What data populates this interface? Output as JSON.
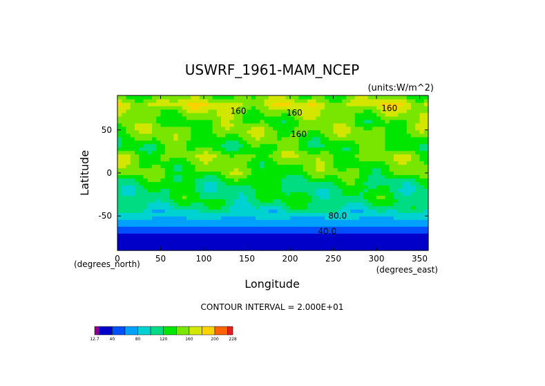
{
  "chart_data": {
    "type": "heatmap",
    "title": "USWRF_1961-MAM_NCEP",
    "units": "(units:W/m^2)",
    "xlabel": "Longitude",
    "ylabel": "Latitude",
    "x_unit_label": "(degrees_east)",
    "y_unit_label": "(degrees_north)",
    "xlim": [
      0,
      360
    ],
    "ylim": [
      -90,
      90
    ],
    "xticks": [
      0,
      50,
      100,
      150,
      200,
      250,
      300,
      350
    ],
    "yticks": [
      -50,
      0,
      50
    ],
    "contour_interval": "CONTOUR INTERVAL = 2.000E+01",
    "contour_labels": [
      {
        "text": "160",
        "lon": 140,
        "lat": 72
      },
      {
        "text": "160",
        "lon": 205,
        "lat": 70
      },
      {
        "text": "160",
        "lon": 315,
        "lat": 75
      },
      {
        "text": "160",
        "lon": 210,
        "lat": 45
      },
      {
        "text": "80.0",
        "lon": 255,
        "lat": -50
      },
      {
        "text": "40.0",
        "lon": 243,
        "lat": -68
      }
    ],
    "latitude_profile": [
      {
        "lat": 90,
        "value": 140
      },
      {
        "lat": 80,
        "value": 170
      },
      {
        "lat": 70,
        "value": 150
      },
      {
        "lat": 60,
        "value": 140
      },
      {
        "lat": 50,
        "value": 150
      },
      {
        "lat": 40,
        "value": 140
      },
      {
        "lat": 30,
        "value": 130
      },
      {
        "lat": 20,
        "value": 150
      },
      {
        "lat": 10,
        "value": 140
      },
      {
        "lat": 0,
        "value": 140
      },
      {
        "lat": -10,
        "value": 120
      },
      {
        "lat": -20,
        "value": 115
      },
      {
        "lat": -30,
        "value": 120
      },
      {
        "lat": -40,
        "value": 105
      },
      {
        "lat": -50,
        "value": 85
      },
      {
        "lat": -60,
        "value": 60
      },
      {
        "lat": -70,
        "value": 40
      },
      {
        "lat": -80,
        "value": 30
      },
      {
        "lat": -90,
        "value": 20
      }
    ],
    "colorbar": {
      "levels": [
        12.7,
        20,
        40,
        60,
        80,
        100,
        120,
        140,
        160,
        180,
        200,
        220,
        228
      ],
      "tick_labels": [
        "12.7",
        "40",
        "80",
        "120",
        "160",
        "200",
        "228"
      ],
      "colors": [
        "#8b008b",
        "#0000c8",
        "#0050ff",
        "#00a0ff",
        "#00d2d2",
        "#00dc82",
        "#00e600",
        "#78e600",
        "#d2e600",
        "#ffd200",
        "#ff6400",
        "#e61e1e"
      ]
    }
  }
}
